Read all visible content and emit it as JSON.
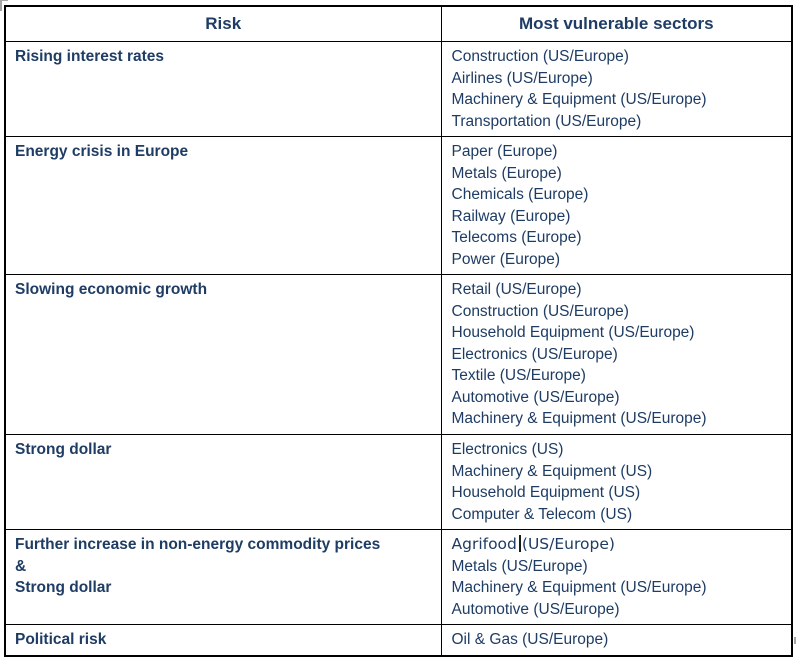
{
  "page": {
    "background_color": "#ffffff",
    "text_color": "#1e3c64",
    "grid_color": "#000000"
  },
  "table": {
    "header": {
      "risk": "Risk",
      "sectors": "Most vulnerable sectors"
    },
    "rows": [
      {
        "risk_lines": [
          "Rising interest rates"
        ],
        "sectors": [
          "Construction (US/Europe)",
          "Airlines (US/Europe)",
          "Machinery & Equipment (US/Europe)",
          "Transportation (US/Europe)"
        ]
      },
      {
        "risk_lines": [
          "Energy crisis in Europe"
        ],
        "sectors": [
          "Paper (Europe)",
          "Metals (Europe)",
          "Chemicals (Europe)",
          "Railway (Europe)",
          "Telecoms (Europe)",
          "Power (Europe)"
        ]
      },
      {
        "risk_lines": [
          "Slowing economic growth"
        ],
        "sectors": [
          "Retail (US/Europe)",
          "Construction (US/Europe)",
          "Household Equipment (US/Europe)",
          "Electronics (US/Europe)",
          "Textile (US/Europe)",
          "Automotive (US/Europe)",
          "Machinery & Equipment (US/Europe)"
        ]
      },
      {
        "risk_lines": [
          "Strong dollar"
        ],
        "sectors": [
          "Electronics (US)",
          "Machinery & Equipment (US)",
          "Household Equipment (US)",
          "Computer & Telecom (US)"
        ]
      },
      {
        "risk_lines": [
          "Further increase in non-energy commodity prices",
          "&",
          "Strong dollar"
        ],
        "sectors": [
          {
            "pre": "Agrifood",
            "cursor": true,
            "post": "(US/Europe)"
          },
          "Metals (US/Europe)",
          "Machinery & Equipment (US/Europe)",
          "Automotive (US/Europe)"
        ]
      },
      {
        "risk_lines": [
          "Political risk"
        ],
        "sectors": [
          "Oil & Gas (US/Europe)"
        ]
      }
    ]
  }
}
